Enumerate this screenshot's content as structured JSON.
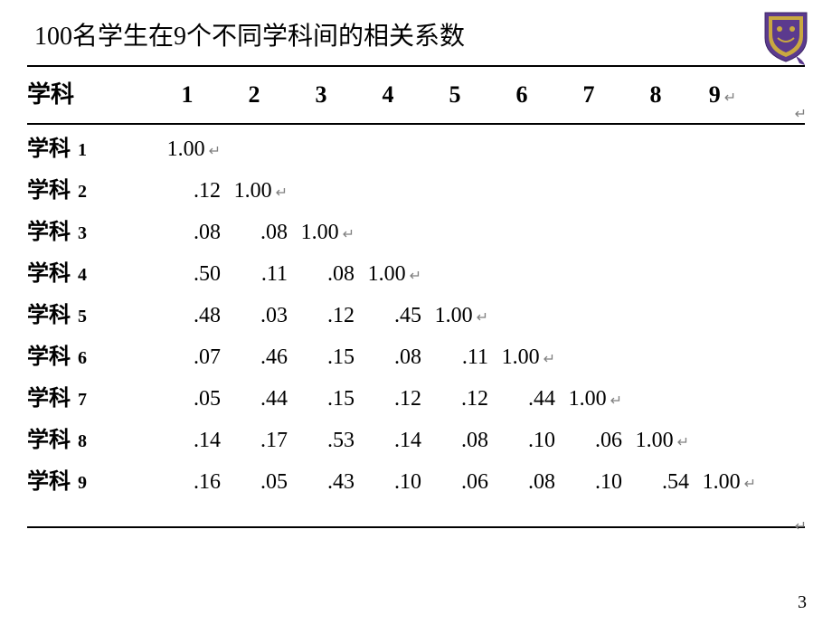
{
  "title": "100名学生在9个不同学科间的相关系数",
  "header_label": "学科",
  "columns": [
    "1",
    "2",
    "3",
    "4",
    "5",
    "6",
    "7",
    "8",
    "9"
  ],
  "enter_glyph": "↵",
  "row_label_prefix": "学科",
  "rows": [
    {
      "n": "1",
      "cells": [
        "1.00"
      ]
    },
    {
      "n": "2",
      "cells": [
        ".12",
        "1.00"
      ]
    },
    {
      "n": "3",
      "cells": [
        ".08",
        ".08",
        "1.00"
      ]
    },
    {
      "n": "4",
      "cells": [
        ".50",
        ".11",
        ".08",
        "1.00"
      ]
    },
    {
      "n": "5",
      "cells": [
        ".48",
        ".03",
        ".12",
        ".45",
        "1.00"
      ]
    },
    {
      "n": "6",
      "cells": [
        ".07",
        ".46",
        ".15",
        ".08",
        ".11",
        "1.00"
      ]
    },
    {
      "n": "7",
      "cells": [
        ".05",
        ".44",
        ".15",
        ".12",
        ".12",
        ".44",
        "1.00"
      ]
    },
    {
      "n": "8",
      "cells": [
        ".14",
        ".17",
        ".53",
        ".14",
        ".08",
        ".10",
        ".06",
        "1.00"
      ]
    },
    {
      "n": "9",
      "cells": [
        ".16",
        ".05",
        ".43",
        ".10",
        ".06",
        ".08",
        ".10",
        ".54",
        "1.00"
      ]
    }
  ],
  "page_number": "3",
  "colors": {
    "text": "#000000",
    "rule": "#000000",
    "enter_mark": "#808080",
    "logo_purple": "#5b3a8e",
    "logo_gold": "#c9a840",
    "background": "#ffffff"
  }
}
